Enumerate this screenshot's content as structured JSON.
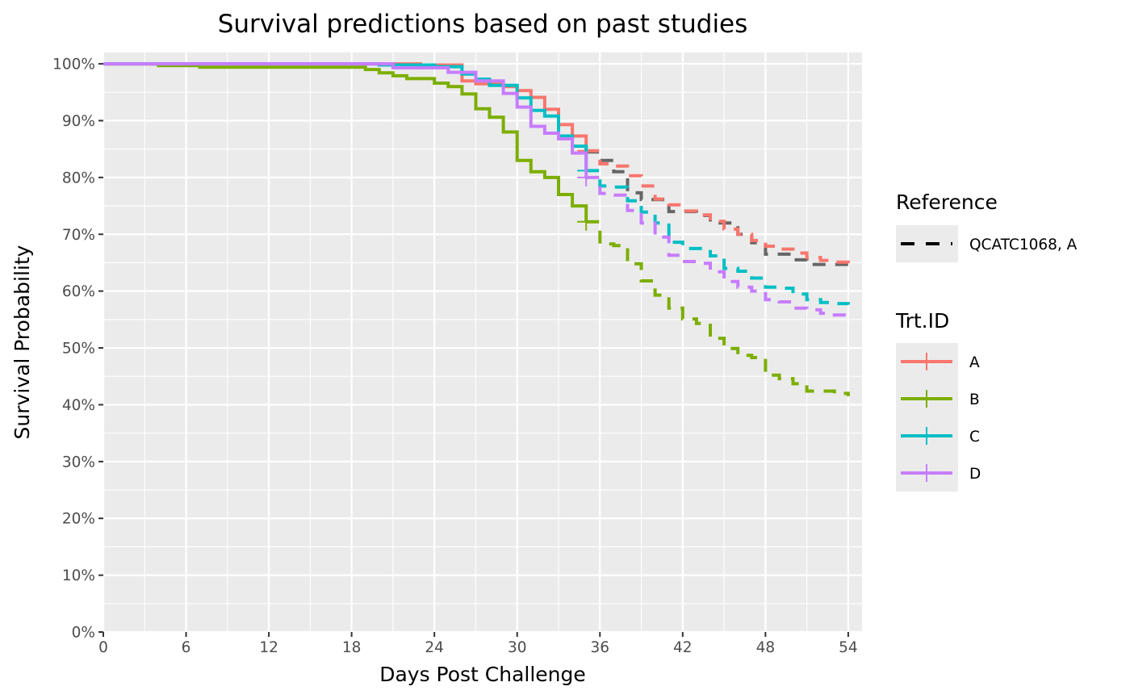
{
  "chart_data": {
    "type": "line",
    "subtype": "survival-step",
    "title": "Survival predictions based on past studies",
    "xlabel": "Days Post Challenge",
    "ylabel": "Survival Probability",
    "xlim": [
      0,
      55
    ],
    "ylim": [
      0,
      1.02
    ],
    "x_ticks": [
      0,
      6,
      12,
      18,
      24,
      30,
      36,
      42,
      48,
      54
    ],
    "y_ticks": [
      0,
      0.1,
      0.2,
      0.3,
      0.4,
      0.5,
      0.6,
      0.7,
      0.8,
      0.9,
      1.0
    ],
    "y_tick_labels": [
      "0%",
      "10%",
      "20%",
      "30%",
      "40%",
      "50%",
      "60%",
      "70%",
      "80%",
      "90%",
      "100%"
    ],
    "x_tick_labels": [
      "0",
      "6",
      "12",
      "18",
      "24",
      "30",
      "36",
      "42",
      "48",
      "54"
    ],
    "grid": true,
    "legend_position": "right",
    "legends": [
      {
        "title": "Reference",
        "entries": [
          {
            "label": "QCATC1068, A",
            "linetype": "dashed",
            "color": "#000000"
          }
        ]
      },
      {
        "title": "Trt.ID",
        "entries": [
          {
            "label": "A",
            "color": "#F8766D"
          },
          {
            "label": "B",
            "color": "#7CAE00"
          },
          {
            "label": "C",
            "color": "#00BFC4"
          },
          {
            "label": "D",
            "color": "#C77CFF"
          }
        ]
      }
    ],
    "series": [
      {
        "name": "A",
        "role": "observed",
        "color": "#F8766D",
        "linetype": "solid",
        "x": [
          0,
          23,
          26,
          27,
          29,
          30,
          31,
          32,
          33,
          34,
          35
        ],
        "y": [
          1.0,
          0.998,
          0.97,
          0.965,
          0.96,
          0.953,
          0.941,
          0.92,
          0.893,
          0.873,
          0.847
        ],
        "censor": {
          "x": 35,
          "y": 0.847
        }
      },
      {
        "name": "B",
        "role": "observed",
        "color": "#7CAE00",
        "linetype": "solid",
        "x": [
          0,
          4,
          7,
          19,
          20,
          21,
          22,
          24,
          25,
          26,
          27,
          28,
          29,
          30,
          31,
          32,
          33,
          34,
          35
        ],
        "y": [
          1.0,
          0.997,
          0.994,
          0.99,
          0.984,
          0.979,
          0.974,
          0.966,
          0.96,
          0.947,
          0.921,
          0.906,
          0.88,
          0.83,
          0.81,
          0.8,
          0.77,
          0.75,
          0.722
        ],
        "censor": {
          "x": 35,
          "y": 0.722
        }
      },
      {
        "name": "C",
        "role": "observed",
        "color": "#00BFC4",
        "linetype": "solid",
        "x": [
          0,
          20,
          24,
          26,
          27,
          28,
          30,
          31,
          32,
          33,
          34,
          35
        ],
        "y": [
          1.0,
          0.998,
          0.995,
          0.982,
          0.973,
          0.962,
          0.94,
          0.918,
          0.908,
          0.873,
          0.855,
          0.812
        ],
        "censor": {
          "x": 35,
          "y": 0.812
        }
      },
      {
        "name": "D",
        "role": "observed",
        "color": "#C77CFF",
        "linetype": "solid",
        "x": [
          0,
          21,
          25,
          27,
          29,
          30,
          31,
          32,
          33,
          34,
          35
        ],
        "y": [
          1.0,
          0.993,
          0.985,
          0.97,
          0.948,
          0.924,
          0.89,
          0.878,
          0.868,
          0.843,
          0.8
        ],
        "censor": {
          "x": 35,
          "y": 0.8
        }
      },
      {
        "name": "QCATC1068, A",
        "role": "reference",
        "color": "#666666",
        "linetype": "dashed",
        "x": [
          35,
          36,
          37,
          38,
          39,
          41,
          43,
          44,
          46,
          47,
          48,
          50,
          51,
          54
        ],
        "y": [
          0.845,
          0.83,
          0.81,
          0.773,
          0.761,
          0.74,
          0.733,
          0.72,
          0.7,
          0.685,
          0.665,
          0.655,
          0.647,
          0.645
        ]
      },
      {
        "name": "A",
        "role": "prediction",
        "color": "#F8766D",
        "linetype": "dashed",
        "x": [
          35,
          36,
          37,
          38,
          39,
          40,
          41,
          42,
          43,
          44,
          45,
          46,
          47,
          48,
          49,
          50,
          51,
          52,
          53,
          54
        ],
        "y": [
          0.847,
          0.824,
          0.82,
          0.803,
          0.785,
          0.762,
          0.752,
          0.741,
          0.734,
          0.723,
          0.709,
          0.7,
          0.689,
          0.679,
          0.674,
          0.667,
          0.659,
          0.654,
          0.651,
          0.645
        ]
      },
      {
        "name": "B",
        "role": "prediction",
        "color": "#7CAE00",
        "linetype": "dashed",
        "x": [
          35,
          36,
          37,
          38,
          39,
          40,
          41,
          42,
          43,
          44,
          45,
          46,
          47,
          48,
          49,
          50,
          51,
          52,
          53,
          54
        ],
        "y": [
          0.722,
          0.683,
          0.68,
          0.648,
          0.618,
          0.593,
          0.57,
          0.551,
          0.543,
          0.517,
          0.499,
          0.487,
          0.483,
          0.452,
          0.446,
          0.437,
          0.424,
          0.424,
          0.42,
          0.415
        ]
      },
      {
        "name": "C",
        "role": "prediction",
        "color": "#00BFC4",
        "linetype": "dashed",
        "x": [
          35,
          36,
          37,
          38,
          39,
          40,
          41,
          42,
          43,
          44,
          45,
          46,
          47,
          48,
          49,
          50,
          51,
          52,
          53,
          54
        ],
        "y": [
          0.812,
          0.785,
          0.783,
          0.759,
          0.739,
          0.72,
          0.686,
          0.675,
          0.675,
          0.662,
          0.64,
          0.635,
          0.623,
          0.607,
          0.605,
          0.595,
          0.585,
          0.58,
          0.578,
          0.576
        ]
      },
      {
        "name": "D",
        "role": "prediction",
        "color": "#C77CFF",
        "linetype": "dashed",
        "x": [
          35,
          36,
          37,
          38,
          39,
          40,
          41,
          42,
          43,
          44,
          45,
          46,
          47,
          48,
          49,
          50,
          51,
          52,
          53,
          54
        ],
        "y": [
          0.8,
          0.772,
          0.769,
          0.742,
          0.72,
          0.695,
          0.663,
          0.652,
          0.649,
          0.634,
          0.617,
          0.607,
          0.6,
          0.585,
          0.581,
          0.57,
          0.567,
          0.561,
          0.558,
          0.551
        ]
      }
    ]
  }
}
